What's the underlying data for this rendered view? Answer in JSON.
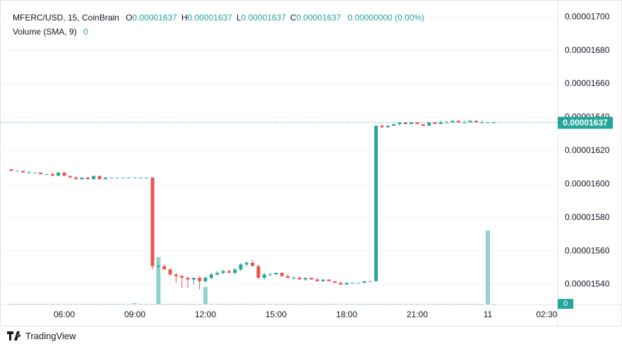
{
  "chart_data": {
    "type": "candlestick",
    "legend": {
      "symbol": "MFERC/USD, 15, CoinBrain",
      "ohlc": [
        {
          "key": "O",
          "value": "0.00001637"
        },
        {
          "key": "H",
          "value": "0.00001637"
        },
        {
          "key": "L",
          "value": "0.00001637"
        },
        {
          "key": "C",
          "value": "0.00001637"
        }
      ],
      "change": "0.00000000 (0.00%)",
      "volume_label": "Volume (SMA, 9)",
      "volume_value": "0"
    },
    "brand": "TradingView",
    "up_color": "#26a69a",
    "down_color": "#ef5350",
    "grid": true,
    "xlim": [
      3.57,
      26.97
    ],
    "ylim": [
      1.528e-05,
      1.706e-05
    ],
    "xticks": [
      {
        "value": 6,
        "label": "06:00"
      },
      {
        "value": 9,
        "label": "09:00"
      },
      {
        "value": 12,
        "label": "12:00"
      },
      {
        "value": 15,
        "label": "15:00"
      },
      {
        "value": 18,
        "label": "18:00"
      },
      {
        "value": 21,
        "label": "21:00"
      },
      {
        "value": 24,
        "label": "11"
      },
      {
        "value": 26.5,
        "label": "02:30"
      }
    ],
    "yticks": [
      {
        "value": 1.54e-05,
        "label": "0.00001540"
      },
      {
        "value": 1.56e-05,
        "label": "0.00001560"
      },
      {
        "value": 1.58e-05,
        "label": "0.00001580"
      },
      {
        "value": 1.6e-05,
        "label": "0.00001600"
      },
      {
        "value": 1.62e-05,
        "label": "0.00001620"
      },
      {
        "value": 1.64e-05,
        "label": "0.00001640"
      },
      {
        "value": 1.66e-05,
        "label": "0.00001660"
      },
      {
        "value": 1.68e-05,
        "label": "0.00001680"
      },
      {
        "value": 1.7e-05,
        "label": "0.00001700"
      }
    ],
    "last_price": {
      "value": 1.637e-05,
      "label": "0.00001637"
    },
    "volume_axis_label": "0",
    "x": [
      3.75,
      4,
      4.25,
      4.5,
      4.75,
      5,
      5.25,
      5.5,
      5.75,
      6,
      6.25,
      6.5,
      6.75,
      7,
      7.25,
      7.5,
      7.75,
      8,
      8.25,
      8.5,
      8.75,
      9,
      9.25,
      9.5,
      9.75,
      10,
      10.25,
      10.5,
      10.75,
      11,
      11.25,
      11.5,
      11.75,
      12,
      12.25,
      12.5,
      12.75,
      13,
      13.25,
      13.5,
      13.75,
      14,
      14.25,
      14.5,
      14.75,
      15,
      15.25,
      15.5,
      15.75,
      16,
      16.25,
      16.5,
      16.75,
      17,
      17.25,
      17.5,
      17.75,
      18,
      18.25,
      18.5,
      18.75,
      19,
      19.25,
      19.5,
      19.75,
      20,
      20.25,
      20.5,
      20.75,
      21,
      21.25,
      21.5,
      21.75,
      22,
      22.25,
      22.5,
      22.75,
      23,
      23.25,
      23.5,
      23.75,
      24,
      24.25
    ],
    "open": [
      1.609e-05,
      1.608e-05,
      1.608e-05,
      1.607e-05,
      1.607e-05,
      1.607e-05,
      1.606e-05,
      1.606e-05,
      1.605e-05,
      1.607e-05,
      1.605e-05,
      1.604e-05,
      1.603e-05,
      1.604e-05,
      1.603e-05,
      1.605e-05,
      1.603e-05,
      1.604e-05,
      1.604e-05,
      1.604e-05,
      1.604e-05,
      1.604e-05,
      1.604e-05,
      1.604e-05,
      1.604e-05,
      1.551e-05,
      1.551e-05,
      1.549e-05,
      1.546e-05,
      1.545e-05,
      1.544e-05,
      1.543e-05,
      1.544e-05,
      1.542e-05,
      1.544e-05,
      1.546e-05,
      1.547e-05,
      1.548e-05,
      1.547e-05,
      1.549e-05,
      1.552e-05,
      1.553e-05,
      1.551e-05,
      1.544e-05,
      1.546e-05,
      1.546e-05,
      1.547e-05,
      1.545e-05,
      1.544e-05,
      1.544e-05,
      1.543e-05,
      1.544e-05,
      1.543e-05,
      1.542e-05,
      1.543e-05,
      1.542e-05,
      1.541e-05,
      1.54e-05,
      1.541e-05,
      1.541e-05,
      1.541e-05,
      1.542e-05,
      1.542e-05,
      1.635e-05,
      1.634e-05,
      1.635e-05,
      1.636e-05,
      1.637e-05,
      1.636e-05,
      1.637e-05,
      1.636e-05,
      1.635e-05,
      1.637e-05,
      1.636e-05,
      1.637e-05,
      1.637e-05,
      1.638e-05,
      1.637e-05,
      1.637e-05,
      1.638e-05,
      1.637e-05,
      1.637e-05,
      1.637e-05
    ],
    "high": [
      1.609e-05,
      1.608e-05,
      1.608e-05,
      1.608e-05,
      1.607e-05,
      1.607e-05,
      1.606e-05,
      1.607e-05,
      1.607e-05,
      1.607e-05,
      1.605e-05,
      1.605e-05,
      1.604e-05,
      1.604e-05,
      1.605e-05,
      1.605e-05,
      1.604e-05,
      1.604e-05,
      1.604e-05,
      1.604e-05,
      1.604e-05,
      1.604e-05,
      1.604e-05,
      1.604e-05,
      1.604e-05,
      1.552e-05,
      1.552e-05,
      1.55e-05,
      1.547e-05,
      1.546e-05,
      1.545e-05,
      1.544e-05,
      1.545e-05,
      1.545e-05,
      1.547e-05,
      1.548e-05,
      1.549e-05,
      1.549e-05,
      1.55e-05,
      1.553e-05,
      1.554e-05,
      1.555e-05,
      1.552e-05,
      1.547e-05,
      1.547e-05,
      1.547e-05,
      1.547e-05,
      1.546e-05,
      1.545e-05,
      1.545e-05,
      1.544e-05,
      1.544e-05,
      1.544e-05,
      1.543e-05,
      1.543e-05,
      1.542e-05,
      1.542e-05,
      1.541e-05,
      1.541e-05,
      1.541e-05,
      1.542e-05,
      1.542e-05,
      1.635e-05,
      1.636e-05,
      1.635e-05,
      1.636e-05,
      1.637e-05,
      1.637e-05,
      1.637e-05,
      1.637e-05,
      1.636e-05,
      1.637e-05,
      1.637e-05,
      1.638e-05,
      1.638e-05,
      1.638e-05,
      1.638e-05,
      1.638e-05,
      1.638e-05,
      1.638e-05,
      1.638e-05,
      1.637e-05,
      1.637e-05
    ],
    "low": [
      1.608e-05,
      1.608e-05,
      1.607e-05,
      1.607e-05,
      1.607e-05,
      1.606e-05,
      1.606e-05,
      1.605e-05,
      1.605e-05,
      1.605e-05,
      1.604e-05,
      1.603e-05,
      1.603e-05,
      1.603e-05,
      1.603e-05,
      1.603e-05,
      1.603e-05,
      1.604e-05,
      1.604e-05,
      1.604e-05,
      1.604e-05,
      1.604e-05,
      1.604e-05,
      1.604e-05,
      1.549e-05,
      1.55e-05,
      1.549e-05,
      1.545e-05,
      1.541e-05,
      1.538e-05,
      1.538e-05,
      1.54e-05,
      1.537e-05,
      1.541e-05,
      1.543e-05,
      1.545e-05,
      1.546e-05,
      1.547e-05,
      1.546e-05,
      1.548e-05,
      1.551e-05,
      1.551e-05,
      1.543e-05,
      1.543e-05,
      1.545e-05,
      1.546e-05,
      1.545e-05,
      1.544e-05,
      1.543e-05,
      1.543e-05,
      1.542e-05,
      1.543e-05,
      1.542e-05,
      1.542e-05,
      1.542e-05,
      1.541e-05,
      1.54e-05,
      1.54e-05,
      1.541e-05,
      1.541e-05,
      1.541e-05,
      1.542e-05,
      1.542e-05,
      1.634e-05,
      1.634e-05,
      1.635e-05,
      1.635e-05,
      1.636e-05,
      1.636e-05,
      1.636e-05,
      1.635e-05,
      1.635e-05,
      1.636e-05,
      1.636e-05,
      1.637e-05,
      1.637e-05,
      1.637e-05,
      1.637e-05,
      1.637e-05,
      1.637e-05,
      1.637e-05,
      1.637e-05,
      1.637e-05
    ],
    "close": [
      1.608e-05,
      1.608e-05,
      1.607e-05,
      1.607e-05,
      1.607e-05,
      1.606e-05,
      1.606e-05,
      1.605e-05,
      1.607e-05,
      1.605e-05,
      1.604e-05,
      1.603e-05,
      1.604e-05,
      1.603e-05,
      1.605e-05,
      1.603e-05,
      1.604e-05,
      1.604e-05,
      1.604e-05,
      1.604e-05,
      1.604e-05,
      1.604e-05,
      1.604e-05,
      1.604e-05,
      1.551e-05,
      1.551e-05,
      1.549e-05,
      1.546e-05,
      1.545e-05,
      1.544e-05,
      1.543e-05,
      1.544e-05,
      1.542e-05,
      1.544e-05,
      1.546e-05,
      1.547e-05,
      1.548e-05,
      1.547e-05,
      1.549e-05,
      1.552e-05,
      1.553e-05,
      1.551e-05,
      1.544e-05,
      1.546e-05,
      1.546e-05,
      1.547e-05,
      1.545e-05,
      1.544e-05,
      1.544e-05,
      1.543e-05,
      1.544e-05,
      1.543e-05,
      1.542e-05,
      1.543e-05,
      1.542e-05,
      1.541e-05,
      1.54e-05,
      1.541e-05,
      1.541e-05,
      1.541e-05,
      1.542e-05,
      1.542e-05,
      1.635e-05,
      1.634e-05,
      1.635e-05,
      1.636e-05,
      1.637e-05,
      1.636e-05,
      1.637e-05,
      1.636e-05,
      1.635e-05,
      1.637e-05,
      1.636e-05,
      1.637e-05,
      1.637e-05,
      1.638e-05,
      1.637e-05,
      1.637e-05,
      1.638e-05,
      1.637e-05,
      1.637e-05,
      1.637e-05,
      1.637e-05
    ],
    "volume": [
      1,
      1,
      1,
      1,
      1,
      1,
      1,
      1,
      1,
      1,
      1,
      1,
      1,
      1,
      1,
      1,
      1,
      1,
      1,
      1,
      1,
      2,
      1,
      1,
      1,
      64,
      1,
      1,
      1,
      1,
      1,
      1,
      1,
      24,
      1,
      1,
      1,
      1,
      1,
      1,
      1,
      1,
      1,
      1,
      1,
      1,
      1,
      1,
      1,
      1,
      1,
      1,
      1,
      1,
      1,
      1,
      1,
      1,
      1,
      1,
      1,
      1,
      1,
      1,
      1,
      1,
      1,
      1,
      1,
      1,
      1,
      1,
      1,
      1,
      1,
      1,
      1,
      1,
      1,
      1,
      1,
      100,
      1
    ]
  }
}
